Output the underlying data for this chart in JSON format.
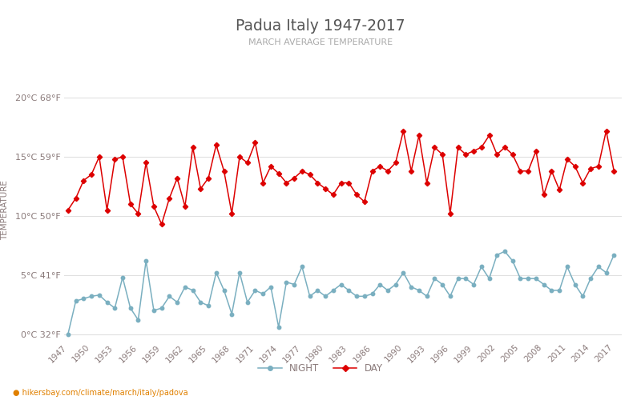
{
  "title": "Padua Italy 1947-2017",
  "subtitle": "MARCH AVERAGE TEMPERATURE",
  "ylabel": "TEMPERATURE",
  "footer": "hikersbay.com/climate/march/italy/padova",
  "bg_color": "#ffffff",
  "title_color": "#555555",
  "subtitle_color": "#aaaaaa",
  "axis_label_color": "#8a7a7a",
  "grid_color": "#e0e0e0",
  "day_color": "#dd0000",
  "night_color": "#7aafc0",
  "years": [
    1947,
    1948,
    1949,
    1950,
    1951,
    1952,
    1953,
    1954,
    1955,
    1956,
    1957,
    1958,
    1959,
    1960,
    1961,
    1962,
    1963,
    1964,
    1965,
    1966,
    1967,
    1968,
    1969,
    1970,
    1971,
    1972,
    1973,
    1974,
    1975,
    1976,
    1977,
    1978,
    1979,
    1980,
    1981,
    1982,
    1983,
    1984,
    1985,
    1986,
    1987,
    1988,
    1989,
    1990,
    1991,
    1992,
    1993,
    1994,
    1995,
    1996,
    1997,
    1998,
    1999,
    2000,
    2001,
    2002,
    2003,
    2004,
    2005,
    2006,
    2007,
    2008,
    2009,
    2010,
    2011,
    2012,
    2013,
    2014,
    2015,
    2016,
    2017
  ],
  "day_temps": [
    10.5,
    11.5,
    13.0,
    13.5,
    15.0,
    10.5,
    14.8,
    15.0,
    11.0,
    10.2,
    14.5,
    10.8,
    9.3,
    11.5,
    13.2,
    10.8,
    15.8,
    12.3,
    13.2,
    16.0,
    13.8,
    10.2,
    15.0,
    14.5,
    16.2,
    12.8,
    14.2,
    13.6,
    12.8,
    13.2,
    13.8,
    13.5,
    12.8,
    12.3,
    11.8,
    12.8,
    12.8,
    11.8,
    11.2,
    13.8,
    14.2,
    13.8,
    14.5,
    17.2,
    13.8,
    16.8,
    12.8,
    15.8,
    15.2,
    10.2,
    15.8,
    15.2,
    15.5,
    15.8,
    16.8,
    15.2,
    15.8,
    15.2,
    13.8,
    13.8,
    15.5,
    11.8,
    13.8,
    12.2,
    14.8,
    14.2,
    12.8,
    14.0,
    14.2,
    17.2,
    13.8
  ],
  "night_temps": [
    0.0,
    2.8,
    3.0,
    3.2,
    3.3,
    2.7,
    2.2,
    4.8,
    2.2,
    1.2,
    6.2,
    2.0,
    2.2,
    3.2,
    2.7,
    4.0,
    3.7,
    2.7,
    2.4,
    5.2,
    3.7,
    1.7,
    5.2,
    2.7,
    3.7,
    3.4,
    4.0,
    0.6,
    4.4,
    4.2,
    5.7,
    3.2,
    3.7,
    3.2,
    3.7,
    4.2,
    3.7,
    3.2,
    3.2,
    3.4,
    4.2,
    3.7,
    4.2,
    5.2,
    4.0,
    3.7,
    3.2,
    4.7,
    4.2,
    3.2,
    4.7,
    4.7,
    4.2,
    5.7,
    4.7,
    6.7,
    7.0,
    6.2,
    4.7,
    4.7,
    4.7,
    4.2,
    3.7,
    3.7,
    5.7,
    4.2,
    3.2,
    4.7,
    5.7,
    5.2,
    6.7
  ],
  "yticks_c": [
    0,
    5,
    10,
    15,
    20
  ],
  "yticks_f": [
    32,
    41,
    50,
    59,
    68
  ],
  "ylim": [
    -0.5,
    21.5
  ],
  "xlim": [
    1946.5,
    2018.0
  ],
  "xtick_years": [
    1947,
    1950,
    1953,
    1956,
    1959,
    1962,
    1965,
    1968,
    1971,
    1974,
    1977,
    1980,
    1983,
    1986,
    1990,
    1993,
    1996,
    1999,
    2002,
    2005,
    2008,
    2011,
    2014,
    2017
  ]
}
